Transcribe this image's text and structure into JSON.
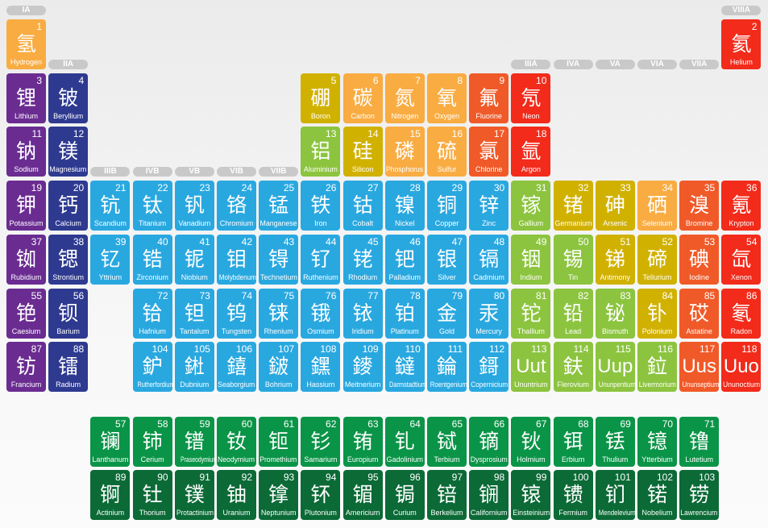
{
  "colors": {
    "hydrogen": "#f9ac42",
    "alkali": "#6a2c91",
    "alkaline": "#2e3a90",
    "transition": "#29a8e0",
    "post_transition": "#8cc43f",
    "metalloid": "#d1b100",
    "nonmetal": "#f9ac42",
    "halogen": "#f05a28",
    "noble": "#f22b1b",
    "lanthanide": "#0a9447",
    "actinide": "#0b6a36",
    "group_label": "#c9c9c9"
  },
  "group_labels": [
    "IA",
    "IIA",
    "IIIB",
    "IVB",
    "VB",
    "VIB",
    "VIIB",
    "VIII",
    "VIII",
    "VIII",
    "IB",
    "IIB",
    "IIIA",
    "IVA",
    "VA",
    "VIA",
    "VIIA",
    "VIIIA"
  ],
  "elements": [
    {
      "z": "1",
      "zh": "氢",
      "en": "Hydrogen",
      "cat": "hydrogen"
    },
    {
      "z": "2",
      "zh": "氦",
      "en": "Helium",
      "cat": "noble"
    },
    {
      "z": "3",
      "zh": "锂",
      "en": "Lithium",
      "cat": "alkali"
    },
    {
      "z": "4",
      "zh": "铍",
      "en": "Beryllium",
      "cat": "alkaline"
    },
    {
      "z": "5",
      "zh": "硼",
      "en": "Boron",
      "cat": "metalloid"
    },
    {
      "z": "6",
      "zh": "碳",
      "en": "Carbon",
      "cat": "nonmetal"
    },
    {
      "z": "7",
      "zh": "氮",
      "en": "Nitrogen",
      "cat": "nonmetal"
    },
    {
      "z": "8",
      "zh": "氧",
      "en": "Oxygen",
      "cat": "nonmetal"
    },
    {
      "z": "9",
      "zh": "氟",
      "en": "Fluorine",
      "cat": "halogen"
    },
    {
      "z": "10",
      "zh": "氖",
      "en": "Neon",
      "cat": "noble"
    },
    {
      "z": "11",
      "zh": "钠",
      "en": "Sodium",
      "cat": "alkali"
    },
    {
      "z": "12",
      "zh": "镁",
      "en": "Magnesium",
      "cat": "alkaline"
    },
    {
      "z": "13",
      "zh": "铝",
      "en": "Aluminium",
      "cat": "post_transition"
    },
    {
      "z": "14",
      "zh": "硅",
      "en": "Silicon",
      "cat": "metalloid"
    },
    {
      "z": "15",
      "zh": "磷",
      "en": "Phosphorus",
      "cat": "nonmetal"
    },
    {
      "z": "16",
      "zh": "硫",
      "en": "Sulfur",
      "cat": "nonmetal"
    },
    {
      "z": "17",
      "zh": "氯",
      "en": "Chlorine",
      "cat": "halogen"
    },
    {
      "z": "18",
      "zh": "氩",
      "en": "Argon",
      "cat": "noble"
    },
    {
      "z": "19",
      "zh": "钾",
      "en": "Potassium",
      "cat": "alkali"
    },
    {
      "z": "20",
      "zh": "钙",
      "en": "Calcium",
      "cat": "alkaline"
    },
    {
      "z": "21",
      "zh": "钪",
      "en": "Scandium",
      "cat": "transition"
    },
    {
      "z": "22",
      "zh": "钛",
      "en": "Titanium",
      "cat": "transition"
    },
    {
      "z": "23",
      "zh": "钒",
      "en": "Vanadium",
      "cat": "transition"
    },
    {
      "z": "24",
      "zh": "铬",
      "en": "Chromium",
      "cat": "transition"
    },
    {
      "z": "25",
      "zh": "锰",
      "en": "Manganese",
      "cat": "transition"
    },
    {
      "z": "26",
      "zh": "铁",
      "en": "Iron",
      "cat": "transition"
    },
    {
      "z": "27",
      "zh": "钴",
      "en": "Cobalt",
      "cat": "transition"
    },
    {
      "z": "28",
      "zh": "镍",
      "en": "Nickel",
      "cat": "transition"
    },
    {
      "z": "29",
      "zh": "铜",
      "en": "Copper",
      "cat": "transition"
    },
    {
      "z": "30",
      "zh": "锌",
      "en": "Zinc",
      "cat": "transition"
    },
    {
      "z": "31",
      "zh": "镓",
      "en": "Gallium",
      "cat": "post_transition"
    },
    {
      "z": "32",
      "zh": "锗",
      "en": "Germanium",
      "cat": "metalloid"
    },
    {
      "z": "33",
      "zh": "砷",
      "en": "Arsenic",
      "cat": "metalloid"
    },
    {
      "z": "34",
      "zh": "硒",
      "en": "Selenium",
      "cat": "nonmetal"
    },
    {
      "z": "35",
      "zh": "溴",
      "en": "Bromine",
      "cat": "halogen"
    },
    {
      "z": "36",
      "zh": "氪",
      "en": "Krypton",
      "cat": "noble"
    },
    {
      "z": "37",
      "zh": "铷",
      "en": "Rubidium",
      "cat": "alkali"
    },
    {
      "z": "38",
      "zh": "锶",
      "en": "Strontium",
      "cat": "alkaline"
    },
    {
      "z": "39",
      "zh": "钇",
      "en": "Yttrium",
      "cat": "transition"
    },
    {
      "z": "40",
      "zh": "锆",
      "en": "Zirconium",
      "cat": "transition"
    },
    {
      "z": "41",
      "zh": "铌",
      "en": "Niobium",
      "cat": "transition"
    },
    {
      "z": "42",
      "zh": "钼",
      "en": "Molybdenum",
      "cat": "transition"
    },
    {
      "z": "43",
      "zh": "锝",
      "en": "Technetium",
      "cat": "transition"
    },
    {
      "z": "44",
      "zh": "钌",
      "en": "Ruthenium",
      "cat": "transition"
    },
    {
      "z": "45",
      "zh": "铑",
      "en": "Rhodium",
      "cat": "transition"
    },
    {
      "z": "46",
      "zh": "钯",
      "en": "Palladium",
      "cat": "transition"
    },
    {
      "z": "47",
      "zh": "银",
      "en": "Silver",
      "cat": "transition"
    },
    {
      "z": "48",
      "zh": "镉",
      "en": "Cadmium",
      "cat": "transition"
    },
    {
      "z": "49",
      "zh": "铟",
      "en": "Indium",
      "cat": "post_transition"
    },
    {
      "z": "50",
      "zh": "锡",
      "en": "Tin",
      "cat": "post_transition"
    },
    {
      "z": "51",
      "zh": "锑",
      "en": "Antimony",
      "cat": "metalloid"
    },
    {
      "z": "52",
      "zh": "碲",
      "en": "Tellurium",
      "cat": "metalloid"
    },
    {
      "z": "53",
      "zh": "碘",
      "en": "Iodine",
      "cat": "halogen"
    },
    {
      "z": "54",
      "zh": "氙",
      "en": "Xenon",
      "cat": "noble"
    },
    {
      "z": "55",
      "zh": "铯",
      "en": "Caesium",
      "cat": "alkali"
    },
    {
      "z": "56",
      "zh": "钡",
      "en": "Barium",
      "cat": "alkaline"
    },
    {
      "z": "57",
      "zh": "镧",
      "en": "Lanthanum",
      "cat": "lanthanide"
    },
    {
      "z": "58",
      "zh": "铈",
      "en": "Cerium",
      "cat": "lanthanide"
    },
    {
      "z": "59",
      "zh": "镨",
      "en": "Praseodymium",
      "cat": "lanthanide"
    },
    {
      "z": "60",
      "zh": "钕",
      "en": "Neodymium",
      "cat": "lanthanide"
    },
    {
      "z": "61",
      "zh": "钷",
      "en": "Promethium",
      "cat": "lanthanide"
    },
    {
      "z": "62",
      "zh": "钐",
      "en": "Samarium",
      "cat": "lanthanide"
    },
    {
      "z": "63",
      "zh": "铕",
      "en": "Europium",
      "cat": "lanthanide"
    },
    {
      "z": "64",
      "zh": "钆",
      "en": "Gadolinium",
      "cat": "lanthanide"
    },
    {
      "z": "65",
      "zh": "铽",
      "en": "Terbium",
      "cat": "lanthanide"
    },
    {
      "z": "66",
      "zh": "镝",
      "en": "Dysprosium",
      "cat": "lanthanide"
    },
    {
      "z": "67",
      "zh": "钬",
      "en": "Holmium",
      "cat": "lanthanide"
    },
    {
      "z": "68",
      "zh": "铒",
      "en": "Erbium",
      "cat": "lanthanide"
    },
    {
      "z": "69",
      "zh": "铥",
      "en": "Thulium",
      "cat": "lanthanide"
    },
    {
      "z": "70",
      "zh": "镱",
      "en": "Ytterbium",
      "cat": "lanthanide"
    },
    {
      "z": "71",
      "zh": "镥",
      "en": "Lutetium",
      "cat": "lanthanide"
    },
    {
      "z": "72",
      "zh": "铪",
      "en": "Hafnium",
      "cat": "transition"
    },
    {
      "z": "73",
      "zh": "钽",
      "en": "Tantalum",
      "cat": "transition"
    },
    {
      "z": "74",
      "zh": "钨",
      "en": "Tungsten",
      "cat": "transition"
    },
    {
      "z": "75",
      "zh": "铼",
      "en": "Rhenium",
      "cat": "transition"
    },
    {
      "z": "76",
      "zh": "锇",
      "en": "Osmium",
      "cat": "transition"
    },
    {
      "z": "77",
      "zh": "铱",
      "en": "Iridium",
      "cat": "transition"
    },
    {
      "z": "78",
      "zh": "铂",
      "en": "Platinum",
      "cat": "transition"
    },
    {
      "z": "79",
      "zh": "金",
      "en": "Gold",
      "cat": "transition"
    },
    {
      "z": "80",
      "zh": "汞",
      "en": "Mercury",
      "cat": "transition"
    },
    {
      "z": "81",
      "zh": "铊",
      "en": "Thallium",
      "cat": "post_transition"
    },
    {
      "z": "82",
      "zh": "铅",
      "en": "Lead",
      "cat": "post_transition"
    },
    {
      "z": "83",
      "zh": "铋",
      "en": "Bismuth",
      "cat": "post_transition"
    },
    {
      "z": "84",
      "zh": "钋",
      "en": "Polonium",
      "cat": "metalloid"
    },
    {
      "z": "85",
      "zh": "砹",
      "en": "Astatine",
      "cat": "halogen"
    },
    {
      "z": "86",
      "zh": "氡",
      "en": "Radon",
      "cat": "noble"
    },
    {
      "z": "87",
      "zh": "钫",
      "en": "Francium",
      "cat": "alkali"
    },
    {
      "z": "88",
      "zh": "镭",
      "en": "Radium",
      "cat": "alkaline"
    },
    {
      "z": "89",
      "zh": "锕",
      "en": "Actinium",
      "cat": "actinide"
    },
    {
      "z": "90",
      "zh": "钍",
      "en": "Thorium",
      "cat": "actinide"
    },
    {
      "z": "91",
      "zh": "镤",
      "en": "Protactinium",
      "cat": "actinide"
    },
    {
      "z": "92",
      "zh": "铀",
      "en": "Uranium",
      "cat": "actinide"
    },
    {
      "z": "93",
      "zh": "镎",
      "en": "Neptunium",
      "cat": "actinide"
    },
    {
      "z": "94",
      "zh": "钚",
      "en": "Plutonium",
      "cat": "actinide"
    },
    {
      "z": "95",
      "zh": "镅",
      "en": "Americium",
      "cat": "actinide"
    },
    {
      "z": "96",
      "zh": "锔",
      "en": "Curium",
      "cat": "actinide"
    },
    {
      "z": "97",
      "zh": "锫",
      "en": "Berkelium",
      "cat": "actinide"
    },
    {
      "z": "98",
      "zh": "锎",
      "en": "Californium",
      "cat": "actinide"
    },
    {
      "z": "99",
      "zh": "锿",
      "en": "Einsteinium",
      "cat": "actinide"
    },
    {
      "z": "100",
      "zh": "镄",
      "en": "Fermium",
      "cat": "actinide"
    },
    {
      "z": "101",
      "zh": "钔",
      "en": "Mendelevium",
      "cat": "actinide"
    },
    {
      "z": "102",
      "zh": "锘",
      "en": "Nobelium",
      "cat": "actinide"
    },
    {
      "z": "103",
      "zh": "铹",
      "en": "Lawrencium",
      "cat": "actinide"
    },
    {
      "z": "104",
      "zh": "鈩",
      "en": "Rutherfordium",
      "cat": "transition"
    },
    {
      "z": "105",
      "zh": "𨧀",
      "en": "Dubnium",
      "cat": "transition"
    },
    {
      "z": "106",
      "zh": "𨭎",
      "en": "Seaborgium",
      "cat": "transition"
    },
    {
      "z": "107",
      "zh": "𨨏",
      "en": "Bohrium",
      "cat": "transition"
    },
    {
      "z": "108",
      "zh": "𨭆",
      "en": "Hassium",
      "cat": "transition"
    },
    {
      "z": "109",
      "zh": "䥑",
      "en": "Meitnerium",
      "cat": "transition"
    },
    {
      "z": "110",
      "zh": "鐽",
      "en": "Darmstadtium",
      "cat": "transition"
    },
    {
      "z": "111",
      "zh": "錀",
      "en": "Roentgenium",
      "cat": "transition"
    },
    {
      "z": "112",
      "zh": "鎶",
      "en": "Copernicium",
      "cat": "transition"
    },
    {
      "z": "113",
      "zh": "Uut",
      "en": "Ununtrium",
      "cat": "post_transition"
    },
    {
      "z": "114",
      "zh": "鈇",
      "en": "Flerovium",
      "cat": "post_transition"
    },
    {
      "z": "115",
      "zh": "Uup",
      "en": "Ununpentium",
      "cat": "post_transition"
    },
    {
      "z": "116",
      "zh": "鉝",
      "en": "Livermorium",
      "cat": "post_transition"
    },
    {
      "z": "117",
      "zh": "Uus",
      "en": "Ununseptium",
      "cat": "halogen"
    },
    {
      "z": "118",
      "zh": "Uuo",
      "en": "Ununoctium",
      "cat": "noble"
    }
  ]
}
